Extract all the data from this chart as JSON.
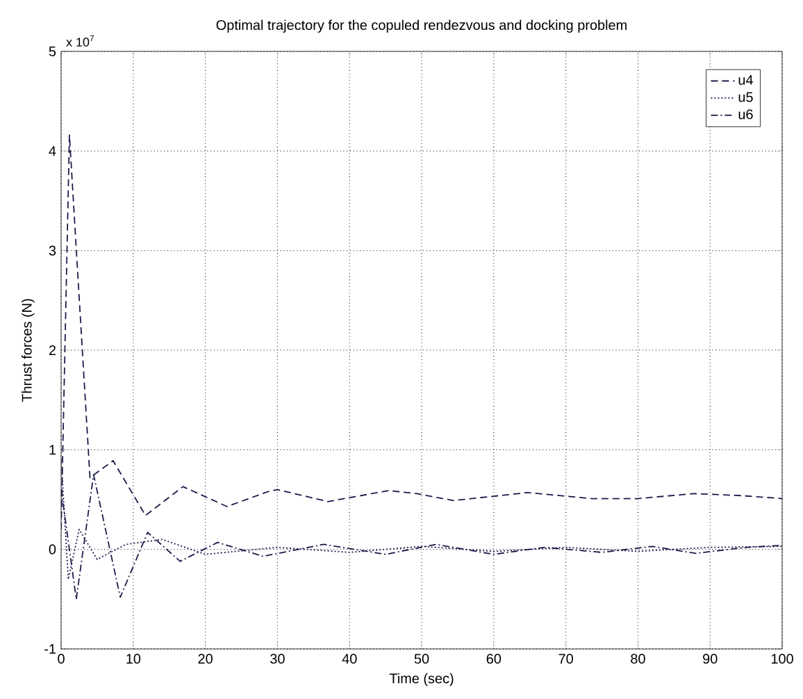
{
  "chart_data": {
    "type": "line",
    "title": "Optimal trajectory for the copuled rendezvous and docking problem",
    "xlabel": "Time (sec)",
    "ylabel": "Thrust forces (N)",
    "annotations": [
      "x 10$^{7}$"
    ],
    "xlim": [
      0,
      100
    ],
    "xticks": [
      0,
      10,
      20,
      30,
      40,
      50,
      60,
      70,
      80,
      90,
      100
    ],
    "ylim": [
      -1,
      5
    ],
    "yticks": [
      -1,
      0,
      1,
      2,
      3,
      4,
      5
    ],
    "grid": true,
    "legend": "top right",
    "series": [
      {
        "name": "u4",
        "color": "#1a1a4a",
        "line_style": "dashed",
        "x": [
          0,
          1.15,
          4.0,
          7.2,
          11.7,
          16.9,
          23,
          28.7,
          30,
          37,
          45.4,
          49.3,
          54.4,
          64.7,
          73.6,
          80,
          87.8,
          94.2,
          100
        ],
        "values": [
          0.2,
          4.16,
          0.72,
          0.89,
          0.34,
          0.63,
          0.43,
          0.58,
          0.6,
          0.48,
          0.59,
          0.56,
          0.49,
          0.57,
          0.51,
          0.51,
          0.56,
          0.54,
          0.51
        ]
      },
      {
        "name": "u5",
        "color": "#1a1a4a",
        "line_style": "dotted",
        "x": [
          0,
          1,
          2.5,
          5,
          9,
          14,
          20,
          30,
          40,
          50,
          60,
          70,
          80,
          90,
          100
        ],
        "values": [
          0.9,
          -0.3,
          0.2,
          -0.1,
          0.05,
          0.1,
          -0.05,
          0.02,
          -0.03,
          0.03,
          -0.02,
          0.02,
          -0.02,
          0.02,
          0.03
        ]
      },
      {
        "name": "u6",
        "color": "#1a1a4a",
        "line_style": "dashdot",
        "x": [
          0,
          2.1,
          4.5,
          8.2,
          12,
          16.5,
          21.7,
          28,
          36.4,
          45,
          52,
          60,
          67,
          75,
          82,
          88,
          95,
          100
        ],
        "values": [
          0.6,
          -0.5,
          0.75,
          -0.48,
          0.17,
          -0.12,
          0.07,
          -0.07,
          0.05,
          -0.05,
          0.05,
          -0.05,
          0.02,
          -0.03,
          0.03,
          -0.04,
          0.02,
          0.04
        ]
      }
    ]
  }
}
